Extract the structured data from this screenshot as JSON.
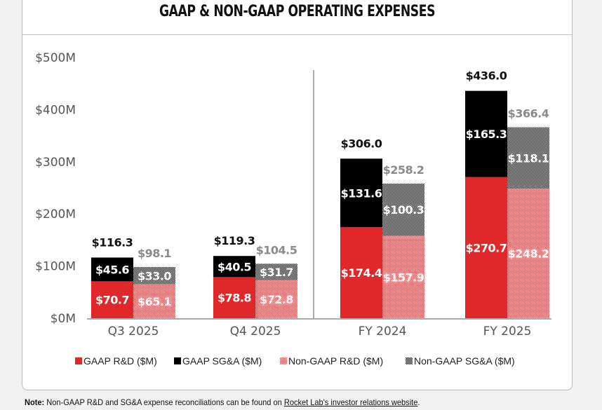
{
  "card": {
    "title": "GAAP & NON-GAAP OPERATING EXPENSES"
  },
  "note": {
    "label": "Note:",
    "text": " Non-GAAP R&D and SG&A expense reconciliations can be found on ",
    "link_text": "Rocket Lab's investor relations website",
    "end": "."
  },
  "colors": {
    "gaap_rd": "#e0282b",
    "gaap_sga": "#000000",
    "nongaap_rd": "#f2a7a7",
    "nongaap_sga": "#555555",
    "axis_text": "#555555",
    "total_gaap": "#111111",
    "total_nongaap": "#8a8a8a"
  },
  "chart_data": {
    "type": "bar",
    "stacked": true,
    "title": "GAAP & NON-GAAP OPERATING EXPENSES",
    "xlabel": "",
    "ylabel": "",
    "ylim": [
      0,
      500
    ],
    "yticks": [
      0,
      100,
      200,
      300,
      400,
      500
    ],
    "ytick_labels": [
      "$0M",
      "$100M",
      "$200M",
      "$300M",
      "$400M",
      "$500M"
    ],
    "categories": [
      "Q3 2025",
      "Q4 2025",
      "FY 2024",
      "FY 2025"
    ],
    "separator_after_category": 1,
    "groups": [
      {
        "name": "GAAP",
        "stack": [
          "GAAP R&D ($M)",
          "GAAP SG&A ($M)"
        ],
        "totals": [
          116.3,
          119.3,
          306.0,
          436.0
        ],
        "total_labels": [
          "$116.3",
          "$119.3",
          "$306.0",
          "$436.0"
        ]
      },
      {
        "name": "Non-GAAP",
        "stack": [
          "Non-GAAP R&D ($M)",
          "Non-GAAP SG&A ($M)"
        ],
        "totals": [
          98.1,
          104.5,
          258.2,
          366.4
        ],
        "total_labels": [
          "$98.1",
          "$104.5",
          "$258.2",
          "$366.4"
        ]
      }
    ],
    "series": [
      {
        "name": "GAAP R&D ($M)",
        "group": "GAAP",
        "values": [
          70.7,
          78.8,
          174.4,
          270.7
        ],
        "labels": [
          "$70.7",
          "$78.8",
          "$174.4",
          "$270.7"
        ],
        "pattern": "solid"
      },
      {
        "name": "GAAP SG&A ($M)",
        "group": "GAAP",
        "values": [
          45.6,
          40.5,
          131.6,
          165.3
        ],
        "labels": [
          "$45.6",
          "$40.5",
          "$131.6",
          "$165.3"
        ],
        "pattern": "solid"
      },
      {
        "name": "Non-GAAP R&D ($M)",
        "group": "Non-GAAP",
        "values": [
          65.1,
          72.8,
          157.9,
          248.2
        ],
        "labels": [
          "$65.1",
          "$72.8",
          "$157.9",
          "$248.2"
        ],
        "pattern": "checker"
      },
      {
        "name": "Non-GAAP SG&A ($M)",
        "group": "Non-GAAP",
        "values": [
          33.0,
          31.7,
          100.3,
          118.1
        ],
        "labels": [
          "$33.0",
          "$31.7",
          "$100.3",
          "$118.1"
        ],
        "pattern": "checker"
      }
    ],
    "legend": {
      "position": "bottom",
      "entries": [
        "GAAP R&D ($M)",
        "GAAP SG&A ($M)",
        "Non-GAAP R&D ($M)",
        "Non-GAAP SG&A ($M)"
      ]
    },
    "grid": false
  }
}
